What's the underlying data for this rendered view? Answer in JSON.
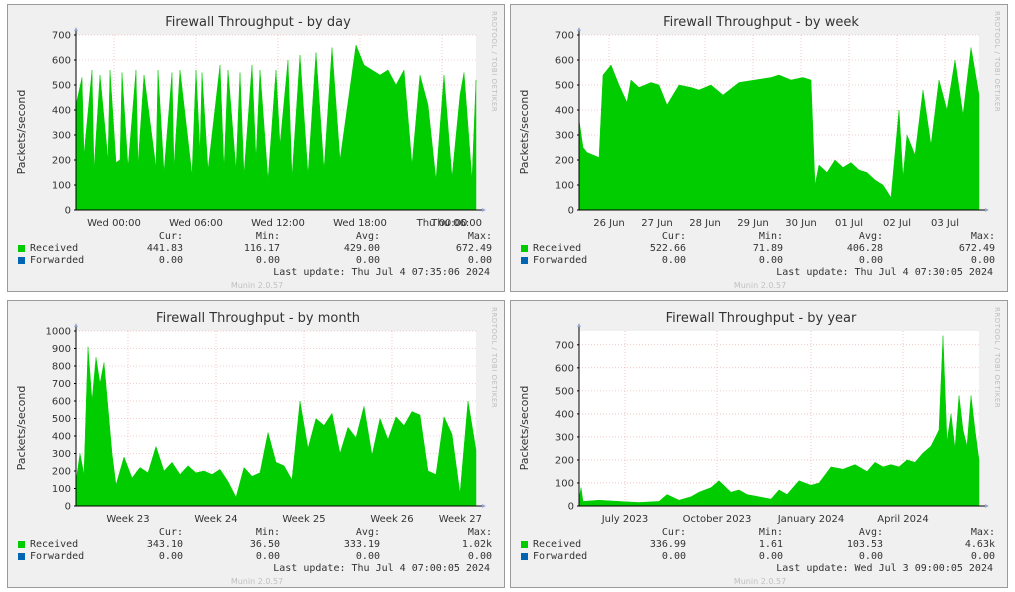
{
  "chart_data": [
    {
      "type": "area",
      "title": "Firewall Throughput - by day",
      "ylabel": "Packets/second",
      "ylim": [
        0,
        700
      ],
      "yticks": [
        0,
        100,
        200,
        300,
        400,
        500,
        600,
        700
      ],
      "ytick_labels": [
        "0",
        "100",
        "200",
        "300",
        "400",
        "500",
        "600",
        "700"
      ],
      "xlim": [
        0,
        1
      ],
      "x_ticks": [
        {
          "label": "Wed 00:00",
          "x": 0.095
        },
        {
          "label": "Wed 06:00",
          "x": 0.3
        },
        {
          "label": "Wed 12:00",
          "x": 0.505
        },
        {
          "label": "Wed 18:00",
          "x": 0.71
        },
        {
          "label": "Thu 00:00",
          "x": 0.915
        }
      ],
      "x_end_label": "Thu 06:00",
      "grid": true,
      "series": [
        {
          "name": "Received",
          "color": "#00cc00",
          "x": [
            0,
            0.015,
            0.02,
            0.04,
            0.045,
            0.06,
            0.08,
            0.085,
            0.1,
            0.11,
            0.115,
            0.13,
            0.15,
            0.155,
            0.17,
            0.2,
            0.205,
            0.22,
            0.24,
            0.245,
            0.26,
            0.29,
            0.3,
            0.31,
            0.315,
            0.33,
            0.36,
            0.37,
            0.38,
            0.4,
            0.41,
            0.42,
            0.44,
            0.45,
            0.46,
            0.48,
            0.5,
            0.51,
            0.53,
            0.54,
            0.56,
            0.58,
            0.6,
            0.62,
            0.64,
            0.66,
            0.7,
            0.72,
            0.74,
            0.76,
            0.78,
            0.8,
            0.82,
            0.84,
            0.86,
            0.88,
            0.9,
            0.92,
            0.94,
            0.96,
            0.97,
            0.99,
            1
          ],
          "values": [
            420,
            530,
            220,
            560,
            160,
            540,
            200,
            560,
            190,
            200,
            550,
            170,
            560,
            180,
            540,
            170,
            560,
            150,
            550,
            170,
            560,
            140,
            560,
            230,
            550,
            160,
            580,
            160,
            560,
            160,
            550,
            140,
            580,
            200,
            560,
            120,
            560,
            260,
            600,
            130,
            620,
            140,
            630,
            160,
            650,
            200,
            660,
            580,
            560,
            540,
            560,
            500,
            560,
            180,
            540,
            420,
            120,
            540,
            130,
            460,
            550,
            120,
            520
          ]
        },
        {
          "name": "Forwarded",
          "color": "#0066b3",
          "x": [
            0,
            1
          ],
          "values": [
            0,
            0
          ]
        }
      ],
      "legend": {
        "headers": [
          "Cur:",
          "Min:",
          "Avg:",
          "Max:"
        ],
        "rows": [
          {
            "name": "Received",
            "color": "#00cc00",
            "cur": "441.83",
            "min": "116.17",
            "avg": "429.00",
            "max": "672.49"
          },
          {
            "name": "Forwarded",
            "color": "#0066b3",
            "cur": "0.00",
            "min": "0.00",
            "avg": "0.00",
            "max": "0.00"
          }
        ]
      },
      "last_update": "Last update: Thu Jul  4 07:35:06 2024"
    },
    {
      "type": "area",
      "title": "Firewall Throughput - by week",
      "ylabel": "Packets/second",
      "ylim": [
        0,
        700
      ],
      "yticks": [
        0,
        100,
        200,
        300,
        400,
        500,
        600,
        700
      ],
      "ytick_labels": [
        "0",
        "100",
        "200",
        "300",
        "400",
        "500",
        "600",
        "700"
      ],
      "xlim": [
        0,
        1
      ],
      "x_ticks": [
        {
          "label": "26 Jun",
          "x": 0.075
        },
        {
          "label": "27 Jun",
          "x": 0.195
        },
        {
          "label": "28 Jun",
          "x": 0.315
        },
        {
          "label": "29 Jun",
          "x": 0.435
        },
        {
          "label": "30 Jun",
          "x": 0.555
        },
        {
          "label": "01 Jul",
          "x": 0.675
        },
        {
          "label": "02 Jul",
          "x": 0.795
        },
        {
          "label": "03 Jul",
          "x": 0.915
        }
      ],
      "grid": true,
      "series": [
        {
          "name": "Received",
          "color": "#00cc00",
          "x": [
            0,
            0.01,
            0.02,
            0.05,
            0.06,
            0.08,
            0.1,
            0.12,
            0.13,
            0.15,
            0.18,
            0.2,
            0.22,
            0.25,
            0.28,
            0.3,
            0.33,
            0.36,
            0.4,
            0.44,
            0.48,
            0.5,
            0.53,
            0.56,
            0.58,
            0.59,
            0.6,
            0.62,
            0.64,
            0.66,
            0.68,
            0.7,
            0.72,
            0.74,
            0.76,
            0.78,
            0.8,
            0.81,
            0.82,
            0.84,
            0.86,
            0.88,
            0.9,
            0.92,
            0.94,
            0.96,
            0.98,
            1
          ],
          "values": [
            360,
            250,
            230,
            210,
            540,
            580,
            500,
            430,
            520,
            490,
            510,
            500,
            420,
            500,
            490,
            480,
            500,
            460,
            510,
            520,
            530,
            540,
            520,
            530,
            520,
            100,
            180,
            150,
            200,
            170,
            190,
            160,
            150,
            120,
            100,
            50,
            400,
            130,
            300,
            220,
            480,
            260,
            520,
            400,
            600,
            380,
            650,
            460
          ]
        },
        {
          "name": "Forwarded",
          "color": "#0066b3",
          "x": [
            0,
            1
          ],
          "values": [
            0,
            0
          ]
        }
      ],
      "legend": {
        "headers": [
          "Cur:",
          "Min:",
          "Avg:",
          "Max:"
        ],
        "rows": [
          {
            "name": "Received",
            "color": "#00cc00",
            "cur": "522.66",
            "min": "71.89",
            "avg": "406.28",
            "max": "672.49"
          },
          {
            "name": "Forwarded",
            "color": "#0066b3",
            "cur": "0.00",
            "min": "0.00",
            "avg": "0.00",
            "max": "0.00"
          }
        ]
      },
      "last_update": "Last update: Thu Jul  4 07:30:05 2024"
    },
    {
      "type": "area",
      "title": "Firewall Throughput - by month",
      "ylabel": "Packets/second",
      "ylim": [
        0,
        1000
      ],
      "yticks": [
        0,
        100,
        200,
        300,
        400,
        500,
        600,
        700,
        800,
        900,
        1000
      ],
      "ytick_labels": [
        "0",
        "100",
        "200",
        "300",
        "400",
        "500",
        "600",
        "700",
        "800",
        "900",
        "1000"
      ],
      "xlim": [
        0,
        1
      ],
      "x_ticks": [
        {
          "label": "Week 23",
          "x": 0.13
        },
        {
          "label": "Week 24",
          "x": 0.35
        },
        {
          "label": "Week 25",
          "x": 0.57
        },
        {
          "label": "Week 26",
          "x": 0.79
        }
      ],
      "x_end_label": "Week 27",
      "grid": true,
      "series": [
        {
          "name": "Received",
          "color": "#00cc00",
          "x": [
            0,
            0.01,
            0.02,
            0.03,
            0.04,
            0.05,
            0.06,
            0.07,
            0.08,
            0.09,
            0.1,
            0.12,
            0.14,
            0.16,
            0.18,
            0.2,
            0.22,
            0.24,
            0.26,
            0.28,
            0.3,
            0.32,
            0.34,
            0.36,
            0.38,
            0.4,
            0.42,
            0.44,
            0.46,
            0.48,
            0.5,
            0.52,
            0.54,
            0.56,
            0.58,
            0.6,
            0.62,
            0.64,
            0.66,
            0.68,
            0.7,
            0.72,
            0.74,
            0.76,
            0.78,
            0.8,
            0.82,
            0.84,
            0.86,
            0.88,
            0.9,
            0.92,
            0.94,
            0.96,
            0.98,
            1
          ],
          "values": [
            140,
            300,
            180,
            910,
            600,
            850,
            700,
            820,
            560,
            300,
            120,
            280,
            160,
            220,
            190,
            340,
            200,
            250,
            180,
            230,
            190,
            200,
            180,
            210,
            140,
            50,
            220,
            170,
            190,
            420,
            250,
            230,
            150,
            600,
            330,
            500,
            460,
            530,
            300,
            450,
            390,
            570,
            290,
            500,
            380,
            510,
            460,
            540,
            520,
            200,
            180,
            510,
            410,
            70,
            600,
            320
          ]
        },
        {
          "name": "Forwarded",
          "color": "#0066b3",
          "x": [
            0,
            1
          ],
          "values": [
            0,
            0
          ]
        }
      ],
      "legend": {
        "headers": [
          "Cur:",
          "Min:",
          "Avg:",
          "Max:"
        ],
        "rows": [
          {
            "name": "Received",
            "color": "#00cc00",
            "cur": "343.10",
            "min": "36.50",
            "avg": "333.19",
            "max": "1.02k"
          },
          {
            "name": "Forwarded",
            "color": "#0066b3",
            "cur": "0.00",
            "min": "0.00",
            "avg": "0.00",
            "max": "0.00"
          }
        ]
      },
      "last_update": "Last update: Thu Jul  4 07:00:05 2024"
    },
    {
      "type": "area",
      "title": "Firewall Throughput - by year",
      "ylabel": "Packets/second",
      "ylim": [
        0,
        760
      ],
      "yticks": [
        0,
        100,
        200,
        300,
        400,
        500,
        600,
        700
      ],
      "ytick_labels": [
        "0",
        "100",
        "200",
        "300",
        "400",
        "500",
        "600",
        "700"
      ],
      "xlim": [
        0,
        1
      ],
      "x_ticks": [
        {
          "label": "July 2023",
          "x": 0.115
        },
        {
          "label": "October 2023",
          "x": 0.345
        },
        {
          "label": "January 2024",
          "x": 0.58
        },
        {
          "label": "April 2024",
          "x": 0.81
        }
      ],
      "grid": true,
      "series": [
        {
          "name": "Received",
          "color": "#00cc00",
          "x": [
            0,
            0.005,
            0.01,
            0.05,
            0.1,
            0.15,
            0.2,
            0.22,
            0.25,
            0.28,
            0.3,
            0.33,
            0.35,
            0.38,
            0.4,
            0.42,
            0.45,
            0.48,
            0.5,
            0.52,
            0.55,
            0.58,
            0.6,
            0.63,
            0.66,
            0.69,
            0.72,
            0.74,
            0.76,
            0.78,
            0.8,
            0.82,
            0.84,
            0.86,
            0.88,
            0.9,
            0.91,
            0.92,
            0.93,
            0.94,
            0.95,
            0.96,
            0.97,
            0.98,
            0.99,
            1
          ],
          "values": [
            30,
            80,
            20,
            25,
            20,
            15,
            20,
            50,
            25,
            40,
            60,
            80,
            110,
            60,
            70,
            50,
            40,
            30,
            70,
            50,
            110,
            90,
            100,
            170,
            160,
            180,
            150,
            190,
            170,
            180,
            170,
            200,
            190,
            230,
            260,
            330,
            740,
            280,
            400,
            250,
            480,
            330,
            260,
            480,
            330,
            200
          ]
        },
        {
          "name": "Forwarded",
          "color": "#0066b3",
          "x": [
            0,
            1
          ],
          "values": [
            0,
            0
          ]
        }
      ],
      "legend": {
        "headers": [
          "Cur:",
          "Min:",
          "Avg:",
          "Max:"
        ],
        "rows": [
          {
            "name": "Received",
            "color": "#00cc00",
            "cur": "336.99",
            "min": "1.61",
            "avg": "103.53",
            "max": "4.63k"
          },
          {
            "name": "Forwarded",
            "color": "#0066b3",
            "cur": "0.00",
            "min": "0.00",
            "avg": "0.00",
            "max": "0.00"
          }
        ]
      },
      "last_update": "Last update: Wed Jul  3 09:00:05 2024"
    }
  ],
  "vendor_mark": "RRDTOOL / TOBI OETIKER",
  "footer": "Munin 2.0.57"
}
